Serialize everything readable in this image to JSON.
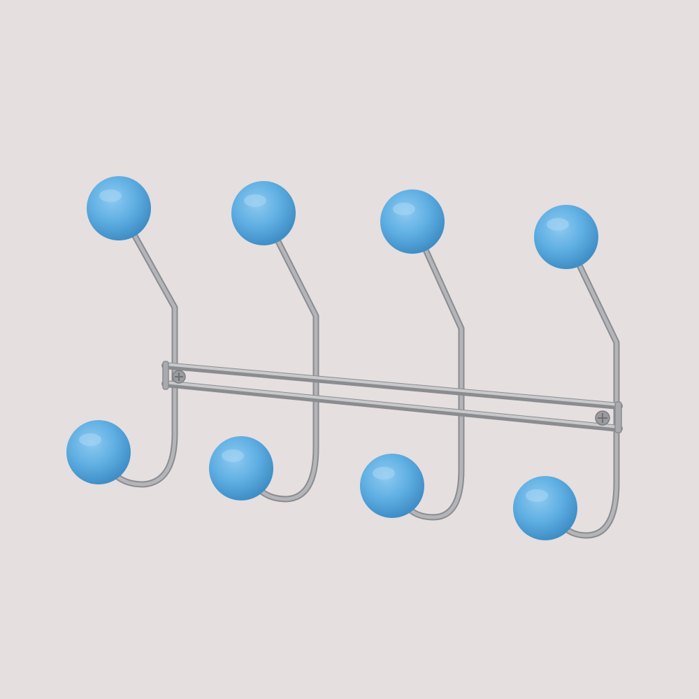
{
  "scene": {
    "subject": "wall-hook-rack",
    "hook_count": 4,
    "colors": {
      "background": "#e5dfdf",
      "wire": "#a9aaad",
      "wire_dark": "#8b8c90",
      "wire_light": "#c9cacc",
      "knob": "#5fafe3",
      "knob_dark": "#3f8ec6",
      "knob_light": "#8fcaf0",
      "screw": "#9a9b9f"
    }
  }
}
